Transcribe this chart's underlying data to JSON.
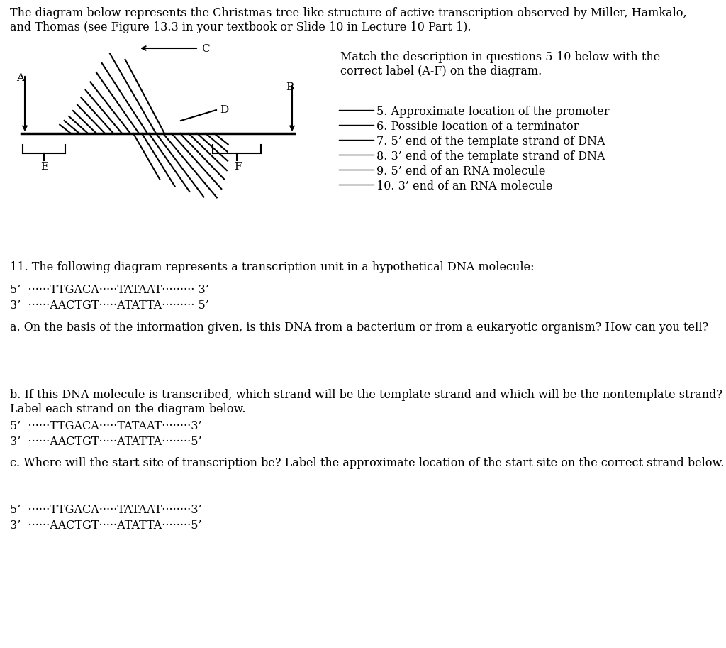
{
  "bg_color": "#ffffff",
  "text_color": "#000000",
  "header_text": "The diagram below represents the Christmas-tree-like structure of active transcription observed by Miller, Hamkalo,\nand Thomas (see Figure 13.3 in your textbook or Slide 10 in Lecture 10 Part 1).",
  "match_text": "Match the description in questions 5-10 below with the\ncorrect label (A-F) on the diagram.",
  "questions_5_10": [
    "5. Approximate location of the promoter",
    "6. Possible location of a terminator",
    "7. 5’ end of the template strand of DNA",
    "8. 3’ end of the template strand of DNA",
    "9. 5’ end of an RNA molecule",
    "10. 3’ end of an RNA molecule"
  ],
  "q11_text": "11. The following diagram represents a transcription unit in a hypothetical DNA molecule:",
  "strand1_q11": "5’  ······TTGACA·····TATAAT········· 3’",
  "strand2_q11": "3’  ······AACTGT·····ATATTA········· 5’",
  "qa_text": "a. On the basis of the information given, is this DNA from a bacterium or from a eukaryotic organism? How can you tell?",
  "qb_text": "b. If this DNA molecule is transcribed, which strand will be the template strand and which will be the nontemplate strand?\nLabel each strand on the diagram below.",
  "strand1_qb": "5’  ······TTGACA·····TATAAT········3’",
  "strand2_qb": "3’  ······AACTGT·····ATATTA········5’",
  "qc_text": "c. Where will the start site of transcription be? Label the approximate location of the start site on the correct strand below.",
  "strand1_qc": "5’  ······TTGACA·····TATAAT········3’",
  "strand2_qc": "3’  ······AACTGT·····ATATTA········5’"
}
